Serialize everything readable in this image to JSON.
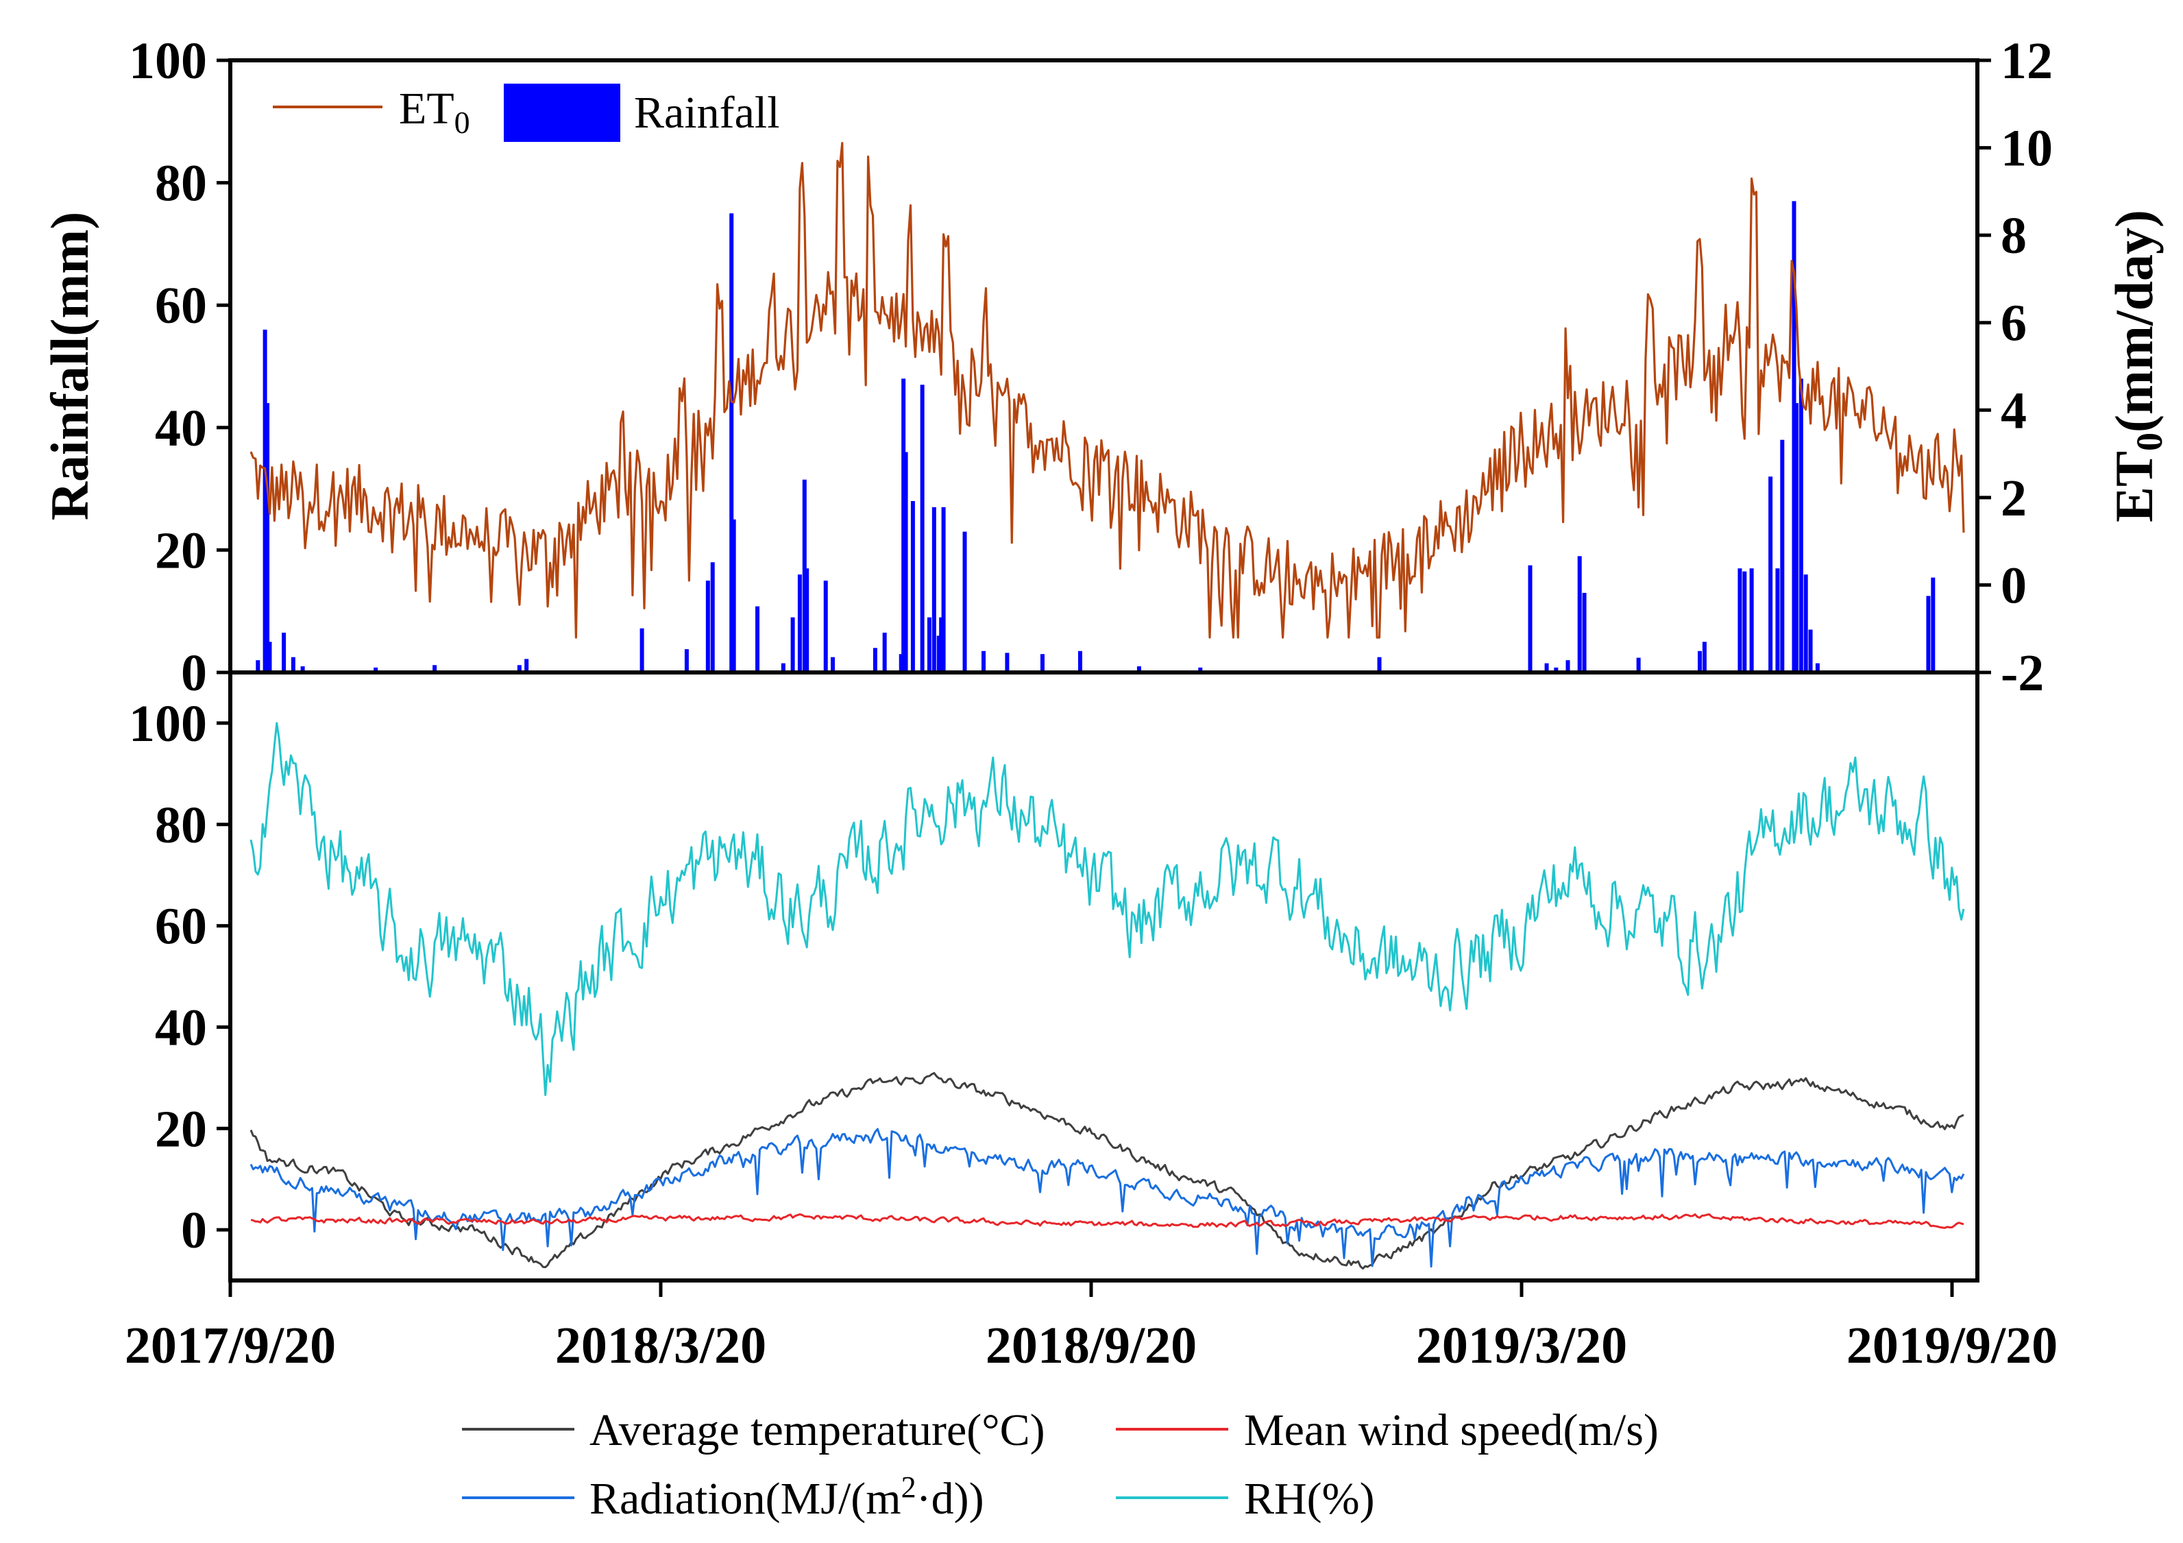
{
  "colors": {
    "et0": "#b5460f",
    "rainfall": "#0000ff",
    "temperature": "#404040",
    "wind": "#e8262a",
    "radiation": "#1a6fe0",
    "rh": "#22c4cc",
    "axis": "#000000"
  },
  "chart_data": [
    {
      "id": "top",
      "type": "bar+line",
      "title": "",
      "x_range": [
        "2017-09-28",
        "2019-09-25"
      ],
      "x_tick_labels": [
        "2017/9/20",
        "2018/3/20",
        "2018/9/20",
        "2019/3/20",
        "2019/9/20"
      ],
      "left_axis": {
        "label": "Rainfall(mm)",
        "ylim": [
          0,
          100
        ],
        "ticks": [
          "0",
          "20",
          "40",
          "60",
          "80",
          "100"
        ]
      },
      "right_axis": {
        "label": "ET",
        "label_sub": "0",
        "label_suffix": "(mm/day)",
        "ylim": [
          -2,
          12
        ],
        "ticks": [
          "-2",
          "0",
          "2",
          "4",
          "6",
          "8",
          "10",
          "12"
        ]
      },
      "legend": [
        {
          "key": "et0",
          "text": "ET",
          "sub": "0"
        },
        {
          "key": "rainfall",
          "text": "Rainfall"
        }
      ],
      "et0_anchors": [
        [
          "2017-09-28",
          2.8
        ],
        [
          "2017-10-05",
          2.1
        ],
        [
          "2017-11-10",
          2.0
        ],
        [
          "2017-12-10",
          1.5
        ],
        [
          "2018-01-10",
          1.0
        ],
        [
          "2018-02-01",
          0.7
        ],
        [
          "2018-02-25",
          2.0
        ],
        [
          "2018-03-20",
          2.5
        ],
        [
          "2018-04-10",
          3.5
        ],
        [
          "2018-05-01",
          5.0
        ],
        [
          "2018-05-25",
          6.5
        ],
        [
          "2018-06-20",
          6.5
        ],
        [
          "2018-07-15",
          5.5
        ],
        [
          "2018-08-10",
          4.2
        ],
        [
          "2018-09-05",
          3.2
        ],
        [
          "2018-10-01",
          2.6
        ],
        [
          "2018-11-01",
          1.4
        ],
        [
          "2018-12-01",
          0.4
        ],
        [
          "2019-01-05",
          0.0
        ],
        [
          "2019-02-01",
          0.8
        ],
        [
          "2019-02-25",
          1.5
        ],
        [
          "2019-03-20",
          3.2
        ],
        [
          "2019-04-20",
          3.8
        ],
        [
          "2019-05-20",
          4.8
        ],
        [
          "2019-06-20",
          5.8
        ],
        [
          "2019-07-20",
          4.5
        ],
        [
          "2019-08-20",
          3.8
        ],
        [
          "2019-09-10",
          2.5
        ],
        [
          "2019-09-25",
          3.2
        ]
      ],
      "et0_peaks": [
        [
          "2018-03-05",
          1.8
        ],
        [
          "2018-03-30",
          2.0
        ],
        [
          "2018-04-15",
          2.5
        ],
        [
          "2018-05-07",
          1.0
        ],
        [
          "2018-05-20",
          3.0
        ],
        [
          "2018-06-05",
          3.5
        ],
        [
          "2018-06-18",
          2.5
        ],
        [
          "2018-07-05",
          2.0
        ],
        [
          "2018-07-20",
          2.5
        ],
        [
          "2018-08-05",
          2.0
        ],
        [
          "2018-08-25",
          1.5
        ],
        [
          "2019-04-10",
          1.8
        ],
        [
          "2019-05-15",
          2.0
        ],
        [
          "2019-06-05",
          2.2
        ],
        [
          "2019-06-28",
          3.0
        ],
        [
          "2019-07-15",
          2.0
        ]
      ],
      "rainfall_events": [
        [
          "2017-10-01",
          2.0
        ],
        [
          "2017-10-04",
          56
        ],
        [
          "2017-10-05",
          44
        ],
        [
          "2017-10-06",
          5
        ],
        [
          "2017-10-12",
          6.5
        ],
        [
          "2017-10-16",
          2.5
        ],
        [
          "2017-10-20",
          1
        ],
        [
          "2017-11-20",
          0.8
        ],
        [
          "2017-12-15",
          1.2
        ],
        [
          "2018-01-20",
          1.2
        ],
        [
          "2018-01-23",
          2.2
        ],
        [
          "2018-03-13",
          7.2
        ],
        [
          "2018-04-01",
          3.8
        ],
        [
          "2018-04-10",
          15
        ],
        [
          "2018-04-12",
          18
        ],
        [
          "2018-04-20",
          75
        ],
        [
          "2018-04-21",
          25
        ],
        [
          "2018-05-01",
          10.8
        ],
        [
          "2018-05-12",
          1.5
        ],
        [
          "2018-05-16",
          9
        ],
        [
          "2018-05-19",
          16
        ],
        [
          "2018-05-21",
          31.5
        ],
        [
          "2018-05-22",
          17
        ],
        [
          "2018-05-30",
          15
        ],
        [
          "2018-06-02",
          2.5
        ],
        [
          "2018-06-20",
          4
        ],
        [
          "2018-06-24",
          6.5
        ],
        [
          "2018-07-01",
          3
        ],
        [
          "2018-07-02",
          48
        ],
        [
          "2018-07-03",
          36
        ],
        [
          "2018-07-06",
          28
        ],
        [
          "2018-07-10",
          47
        ],
        [
          "2018-07-13",
          9
        ],
        [
          "2018-07-15",
          27
        ],
        [
          "2018-07-17",
          6
        ],
        [
          "2018-07-18",
          9
        ],
        [
          "2018-07-19",
          27
        ],
        [
          "2018-07-28",
          23
        ],
        [
          "2018-08-05",
          3.5
        ],
        [
          "2018-08-15",
          3.2
        ],
        [
          "2018-08-30",
          3.0
        ],
        [
          "2018-09-15",
          3.5
        ],
        [
          "2018-10-10",
          1.0
        ],
        [
          "2018-11-05",
          0.8
        ],
        [
          "2019-01-20",
          2.5
        ],
        [
          "2019-03-25",
          17.5
        ],
        [
          "2019-04-01",
          1.5
        ],
        [
          "2019-04-05",
          0.8
        ],
        [
          "2019-04-10",
          2.0
        ],
        [
          "2019-04-15",
          19
        ],
        [
          "2019-04-17",
          13
        ],
        [
          "2019-05-10",
          2.4
        ],
        [
          "2019-06-05",
          3.5
        ],
        [
          "2019-06-07",
          5
        ],
        [
          "2019-06-22",
          17
        ],
        [
          "2019-06-24",
          16.5
        ],
        [
          "2019-06-27",
          17
        ],
        [
          "2019-07-05",
          32
        ],
        [
          "2019-07-08",
          17
        ],
        [
          "2019-07-10",
          38
        ],
        [
          "2019-07-15",
          77
        ],
        [
          "2019-07-16",
          44
        ],
        [
          "2019-07-18",
          48
        ],
        [
          "2019-07-20",
          16
        ],
        [
          "2019-07-22",
          7
        ],
        [
          "2019-07-25",
          1.5
        ],
        [
          "2019-09-10",
          12.5
        ],
        [
          "2019-09-12",
          15.5
        ]
      ]
    },
    {
      "id": "bottom",
      "type": "line",
      "title": "",
      "x_range": [
        "2017-09-28",
        "2019-09-25"
      ],
      "ylim": [
        -10,
        110
      ],
      "y_ticks": [
        "0",
        "20",
        "40",
        "60",
        "80",
        "100"
      ],
      "legend": [
        {
          "key": "temperature",
          "text": "Average temperature(°C)"
        },
        {
          "key": "wind",
          "text": "Mean wind speed(m/s)"
        },
        {
          "key": "radiation",
          "text": "Radiation(MJ/(m",
          "sup": "2",
          "suffix": "·d))"
        },
        {
          "key": "rh",
          "text": "RH(%)"
        }
      ],
      "series": [
        {
          "name": "Average temperature(°C)",
          "key": "temperature",
          "amp": 1.6,
          "anchors": [
            [
              "2017-09-28",
              20
            ],
            [
              "2017-10-05",
              14
            ],
            [
              "2017-11-05",
              11
            ],
            [
              "2017-12-01",
              2
            ],
            [
              "2018-01-01",
              0
            ],
            [
              "2018-02-01",
              -7
            ],
            [
              "2018-03-01",
              3
            ],
            [
              "2018-03-25",
              12
            ],
            [
              "2018-04-20",
              17
            ],
            [
              "2018-05-20",
              24
            ],
            [
              "2018-06-20",
              29
            ],
            [
              "2018-07-15",
              30
            ],
            [
              "2018-08-20",
              25
            ],
            [
              "2018-09-20",
              19
            ],
            [
              "2018-10-20",
              12
            ],
            [
              "2018-11-20",
              7
            ],
            [
              "2018-12-15",
              -4
            ],
            [
              "2019-01-15",
              -7
            ],
            [
              "2019-02-15",
              0
            ],
            [
              "2019-03-10",
              9
            ],
            [
              "2019-04-15",
              15
            ],
            [
              "2019-05-20",
              23
            ],
            [
              "2019-06-20",
              28
            ],
            [
              "2019-07-20",
              29
            ],
            [
              "2019-08-20",
              25
            ],
            [
              "2019-09-20",
              20
            ],
            [
              "2019-09-25",
              22
            ]
          ]
        },
        {
          "name": "Mean wind speed(m/s)",
          "key": "wind",
          "amp": 0.9,
          "anchors": [
            [
              "2017-09-28",
              2
            ],
            [
              "2018-02-01",
              1.5
            ],
            [
              "2018-03-20",
              2.2
            ],
            [
              "2018-06-01",
              2.5
            ],
            [
              "2018-09-01",
              1.2
            ],
            [
              "2018-12-01",
              1.0
            ],
            [
              "2019-03-20",
              2.5
            ],
            [
              "2019-06-01",
              2.5
            ],
            [
              "2019-09-25",
              0.8
            ]
          ]
        },
        {
          "name": "Radiation(MJ/(m²·d))",
          "key": "radiation",
          "amp": 2.2,
          "dips": 9,
          "anchors": [
            [
              "2017-09-28",
              13
            ],
            [
              "2017-11-01",
              8
            ],
            [
              "2017-12-15",
              3
            ],
            [
              "2018-01-15",
              2
            ],
            [
              "2018-02-15",
              3
            ],
            [
              "2018-03-20",
              9
            ],
            [
              "2018-04-20",
              14
            ],
            [
              "2018-05-20",
              17
            ],
            [
              "2018-06-20",
              19
            ],
            [
              "2018-07-20",
              16
            ],
            [
              "2018-08-20",
              13
            ],
            [
              "2018-09-20",
              12
            ],
            [
              "2018-10-20",
              8
            ],
            [
              "2018-11-20",
              5
            ],
            [
              "2018-12-20",
              1
            ],
            [
              "2019-01-20",
              -1
            ],
            [
              "2019-02-20",
              3
            ],
            [
              "2019-03-20",
              10
            ],
            [
              "2019-04-20",
              13
            ],
            [
              "2019-05-20",
              15
            ],
            [
              "2019-06-20",
              14
            ],
            [
              "2019-07-20",
              14
            ],
            [
              "2019-08-20",
              13
            ],
            [
              "2019-09-25",
              10
            ]
          ]
        },
        {
          "name": "RH(%)",
          "key": "rh",
          "amp": 13,
          "anchors": [
            [
              "2017-09-28",
              72
            ],
            [
              "2017-10-08",
              95
            ],
            [
              "2017-11-01",
              75
            ],
            [
              "2017-12-01",
              55
            ],
            [
              "2018-01-05",
              55
            ],
            [
              "2018-01-25",
              45
            ],
            [
              "2018-02-01",
              32
            ],
            [
              "2018-02-15",
              48
            ],
            [
              "2018-03-20",
              65
            ],
            [
              "2018-04-20",
              75
            ],
            [
              "2018-05-20",
              62
            ],
            [
              "2018-06-15",
              72
            ],
            [
              "2018-07-15",
              85
            ],
            [
              "2018-08-15",
              85
            ],
            [
              "2018-09-10",
              72
            ],
            [
              "2018-10-10",
              60
            ],
            [
              "2018-11-10",
              70
            ],
            [
              "2018-12-10",
              72
            ],
            [
              "2019-01-10",
              55
            ],
            [
              "2019-02-10",
              50
            ],
            [
              "2019-03-10",
              55
            ],
            [
              "2019-04-10",
              70
            ],
            [
              "2019-05-10",
              62
            ],
            [
              "2019-06-10",
              55
            ],
            [
              "2019-07-10",
              82
            ],
            [
              "2019-08-10",
              85
            ],
            [
              "2019-09-10",
              80
            ],
            [
              "2019-09-25",
              62
            ]
          ]
        }
      ]
    }
  ]
}
